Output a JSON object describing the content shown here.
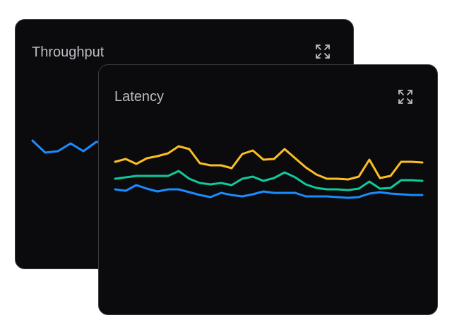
{
  "cards": [
    {
      "title": "Throughput",
      "expand_icon": "expand-icon",
      "chart_data": {
        "type": "line",
        "partially_hidden": true,
        "x": [
          0,
          1,
          2,
          3,
          4,
          5,
          6
        ],
        "series": [
          {
            "color": "#1a8cff",
            "values": [
              102,
              85,
              87,
              98,
              87,
              100,
              100
            ]
          }
        ]
      }
    },
    {
      "title": "Latency",
      "expand_icon": "expand-icon",
      "chart_data": {
        "type": "line",
        "grid": false,
        "x": [
          0,
          1,
          2,
          3,
          4,
          5,
          6,
          7,
          8,
          9,
          10,
          11,
          12,
          13,
          14,
          15,
          16,
          17,
          18,
          19,
          20,
          21,
          22,
          23,
          24,
          25,
          26,
          27,
          28,
          29
        ],
        "series": [
          {
            "color": "#fbbf24",
            "values": [
              72,
              76,
              69,
              77,
              80,
              84,
              94,
              90,
              70,
              67,
              67,
              63,
              83,
              88,
              75,
              76,
              90,
              77,
              64,
              54,
              48,
              48,
              47,
              51,
              75,
              49,
              52,
              72,
              72,
              71
            ]
          },
          {
            "color": "#10c99a",
            "values": [
              48,
              50,
              52,
              52,
              52,
              52,
              59,
              48,
              42,
              40,
              42,
              39,
              48,
              51,
              45,
              49,
              57,
              50,
              40,
              35,
              33,
              33,
              32,
              34,
              44,
              34,
              35,
              46,
              46,
              45
            ]
          },
          {
            "color": "#1a8cff",
            "values": [
              33,
              31,
              39,
              34,
              30,
              33,
              33,
              29,
              25,
              22,
              28,
              25,
              23,
              26,
              30,
              28,
              28,
              28,
              23,
              23,
              23,
              22,
              21,
              22,
              27,
              29,
              27,
              26,
              25,
              25
            ]
          }
        ]
      }
    }
  ]
}
